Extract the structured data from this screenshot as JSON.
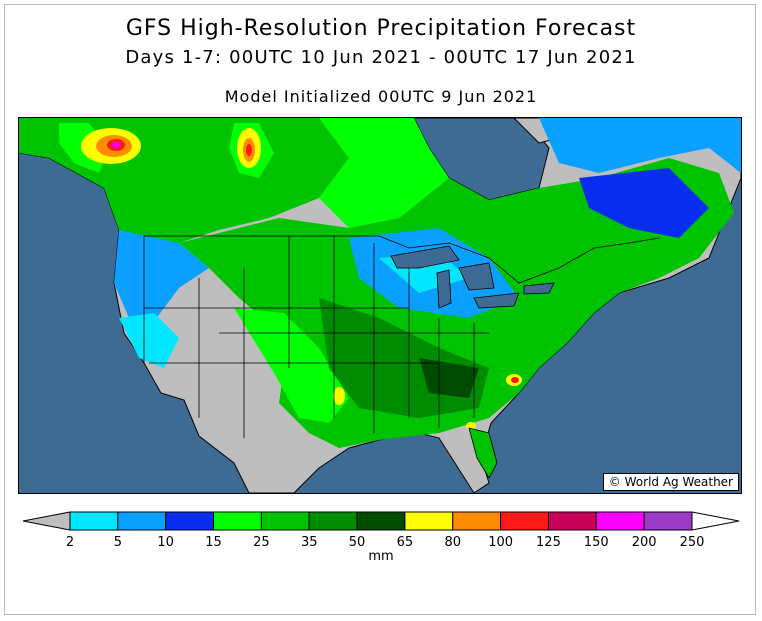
{
  "header": {
    "title": "GFS High-Resolution Precipitation Forecast",
    "period": "Days 1-7: 00UTC 10 Jun 2021 - 00UTC 17 Jun 2021",
    "init": "Model Initialized 00UTC 9 Jun 2021"
  },
  "map": {
    "credit_symbol": "©",
    "credit_text": "World Ag Weather"
  },
  "legend": {
    "unit": "mm",
    "ticks": [
      "2",
      "5",
      "10",
      "15",
      "25",
      "35",
      "50",
      "65",
      "80",
      "100",
      "125",
      "150",
      "200",
      "250"
    ],
    "colors": [
      "#00e6ff",
      "#0aa0ff",
      "#0a2ef0",
      "#00ff00",
      "#00c300",
      "#008c00",
      "#004b00",
      "#ffff00",
      "#ff8c00",
      "#ff1a1a",
      "#c8005a",
      "#ff00ff",
      "#9b3cc8"
    ],
    "low_color": "#bebebe",
    "high_color": "#ffffff"
  }
}
